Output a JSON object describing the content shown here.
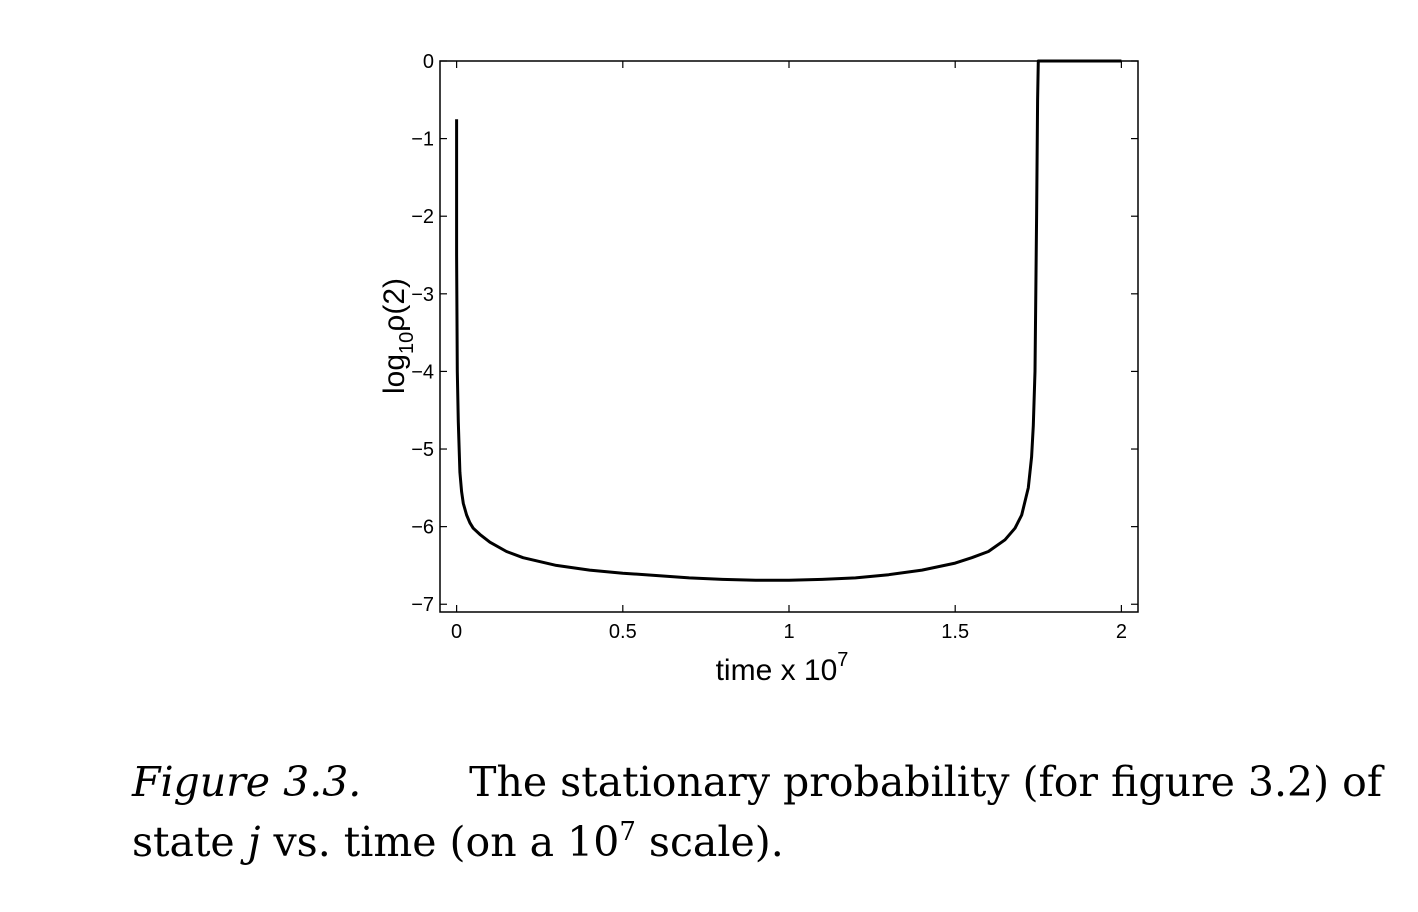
{
  "chart_data": {
    "type": "line",
    "xlabel": "time x 10",
    "xlabel_exponent": "7",
    "ylabel": "log",
    "ylabel_subscript": "10",
    "ylabel_suffix": "ρ(2)",
    "xlim": [
      -0.05,
      2.05
    ],
    "ylim": [
      -7.1,
      0
    ],
    "x_ticks": [
      0,
      0.5,
      1,
      1.5,
      2
    ],
    "x_tick_labels": [
      "0",
      "0.5",
      "1",
      "1.5",
      "2"
    ],
    "y_ticks": [
      0,
      -1,
      -2,
      -3,
      -4,
      -5,
      -6,
      -7
    ],
    "y_tick_labels": [
      "0",
      "−1",
      "−2",
      "−3",
      "−4",
      "−5",
      "−6",
      "−7"
    ],
    "grid": false,
    "series": [
      {
        "color": "#000000",
        "x": [
          0.0,
          0.0,
          0.002,
          0.005,
          0.01,
          0.015,
          0.02,
          0.03,
          0.04,
          0.05,
          0.07,
          0.1,
          0.15,
          0.2,
          0.3,
          0.4,
          0.5,
          0.6,
          0.7,
          0.8,
          0.9,
          0.95,
          1.0,
          1.1,
          1.2,
          1.3,
          1.4,
          1.5,
          1.55,
          1.6,
          1.65,
          1.68,
          1.7,
          1.72,
          1.73,
          1.735,
          1.74,
          1.745,
          1.748,
          1.75,
          1.8,
          1.9,
          2.0
        ],
        "y": [
          -0.75,
          -2.5,
          -4.0,
          -4.65,
          -5.3,
          -5.55,
          -5.7,
          -5.85,
          -5.95,
          -6.02,
          -6.1,
          -6.2,
          -6.32,
          -6.4,
          -6.5,
          -6.56,
          -6.6,
          -6.63,
          -6.66,
          -6.68,
          -6.69,
          -6.69,
          -6.69,
          -6.68,
          -6.66,
          -6.62,
          -6.56,
          -6.47,
          -6.4,
          -6.32,
          -6.17,
          -6.02,
          -5.85,
          -5.5,
          -5.1,
          -4.7,
          -4.0,
          -2.0,
          -0.5,
          0.0,
          0.0,
          0.0,
          0.0
        ]
      }
    ]
  },
  "caption": {
    "figure_label": "Figure 3.3.",
    "line1_text": "The stationary probability (for figure 3.2) of",
    "line2_before_var": "state",
    "variable": "j",
    "line2_middle": "vs. time (on a 10",
    "exponent": "7",
    "line2_after": "scale)."
  }
}
